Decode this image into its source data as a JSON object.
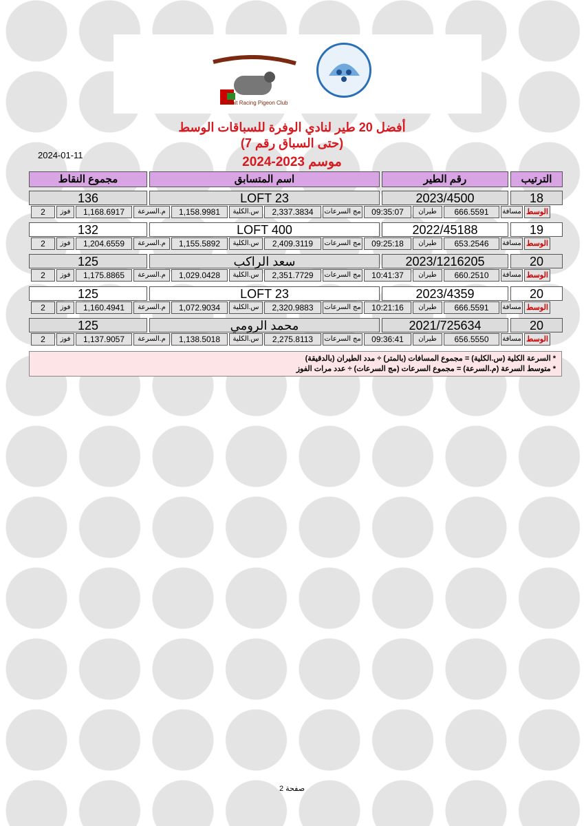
{
  "header": {
    "title_line1": "أفضل 20 طير لنادي الوفرة للسباقات الوسط",
    "title_line2": "(حتى السباق رقم 7)",
    "title_line3": "موسم 2023-2024",
    "date": "2024-01-11",
    "logo_club": "النادي الكويتي لسباق الحمام الزاجل - Kuwait Racing Pigeon Club",
    "logo_federation": "Pigeons & Birds Sports Club Kuwait"
  },
  "columns": {
    "rank": "الترتيب",
    "pigeon": "رقم الطير",
    "name": "اسم المتسابق",
    "points": "مجموع النقاط"
  },
  "labels": {
    "category": "الوسط",
    "distance": "مسافة",
    "flight": "طيران",
    "sum_speeds": "مج السرعات",
    "total_speed": "س.الكلية",
    "avg_speed": "م.السرعة",
    "wins": "فوز"
  },
  "rows": [
    {
      "rank": "18",
      "pigeon": "2023/4500",
      "name": "LOFT 23",
      "points": "136",
      "distance": "666.5591",
      "flight": "09:35:07",
      "sum_speeds": "2,337.3834",
      "total_speed": "1,158.9981",
      "avg_speed": "1,168.6917",
      "wins": "2"
    },
    {
      "rank": "19",
      "pigeon": "2022/45188",
      "name": "LOFT 400",
      "points": "132",
      "distance": "653.2546",
      "flight": "09:25:18",
      "sum_speeds": "2,409.3119",
      "total_speed": "1,155.5892",
      "avg_speed": "1,204.6559",
      "wins": "2"
    },
    {
      "rank": "20",
      "pigeon": "2023/1216205",
      "name": "سعد الراكب",
      "points": "125",
      "distance": "660.2510",
      "flight": "10:41:37",
      "sum_speeds": "2,351.7729",
      "total_speed": "1,029.0428",
      "avg_speed": "1,175.8865",
      "wins": "2"
    },
    {
      "rank": "20",
      "pigeon": "2023/4359",
      "name": "LOFT 23",
      "points": "125",
      "distance": "666.5591",
      "flight": "10:21:16",
      "sum_speeds": "2,320.9883",
      "total_speed": "1,072.9034",
      "avg_speed": "1,160.4941",
      "wins": "2"
    },
    {
      "rank": "20",
      "pigeon": "2021/725634",
      "name": "محمد الرومي",
      "points": "125",
      "distance": "656.5550",
      "flight": "09:36:41",
      "sum_speeds": "2,275.8113",
      "total_speed": "1,138.5018",
      "avg_speed": "1,137.9057",
      "wins": "2"
    }
  ],
  "notes": [
    "* السرعة الكلية (س.الكلية) = مجموع المسافات (بالمتر) ÷ مدد الطيران (بالدقيقة)",
    "* متوسط السرعة (م.السرعة) = مجموع السرعات (مج السرعات) ÷ عدد مرات الفوز"
  ],
  "footer": {
    "page": "صفحة 2"
  },
  "colors": {
    "title": "#d71920",
    "header_bg": "#d9a4e3",
    "notes_bg": "#fde4e6"
  }
}
